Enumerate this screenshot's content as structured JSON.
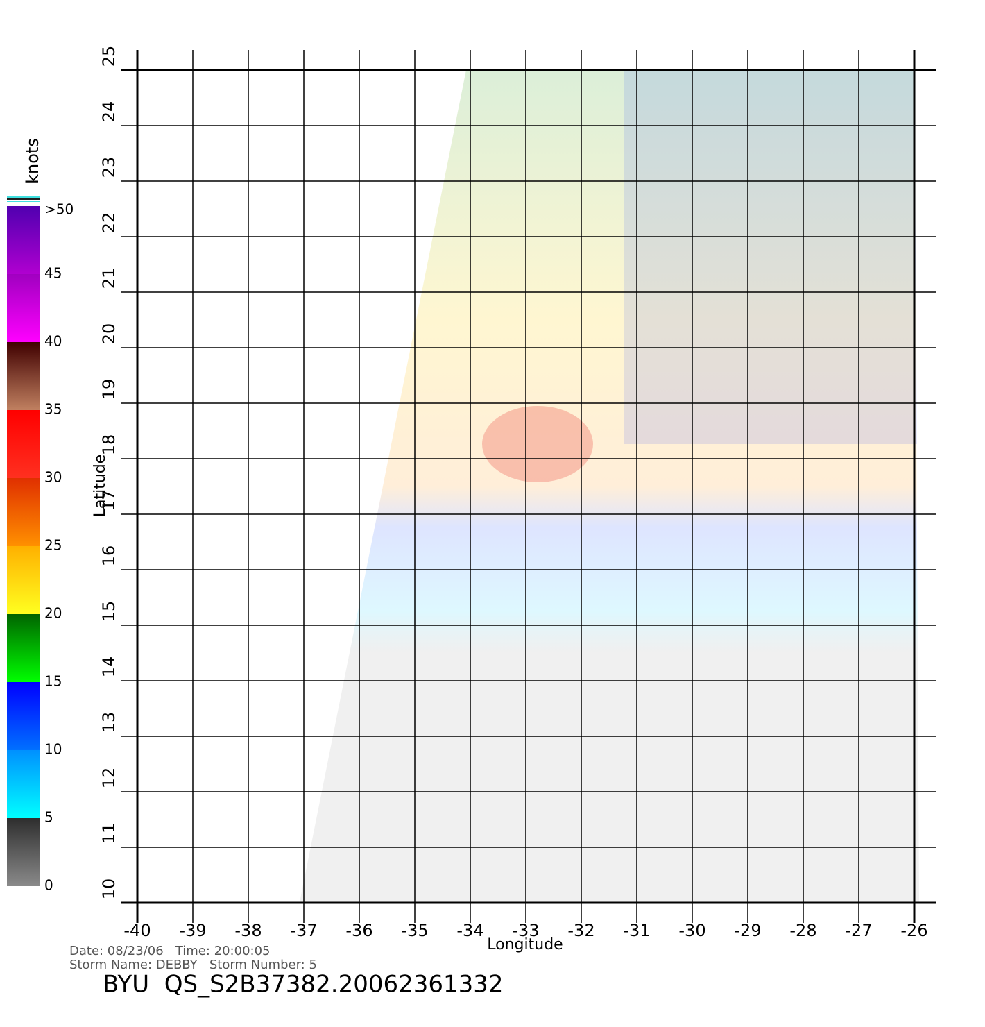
{
  "map": {
    "xlabel": "Longitude",
    "ylabel": "Latitude",
    "xlim": [
      -40,
      -26
    ],
    "ylim": [
      10,
      25
    ],
    "xticks": [
      -40,
      -39,
      -38,
      -37,
      -36,
      -35,
      -34,
      -33,
      -32,
      -31,
      -30,
      -29,
      -28,
      -27,
      -26
    ],
    "yticks": [
      10,
      11,
      12,
      13,
      14,
      15,
      16,
      17,
      18,
      19,
      20,
      21,
      22,
      23,
      24,
      25
    ],
    "grid": true
  },
  "colorbar": {
    "title": "knots",
    "lim": [
      0,
      50
    ],
    "ticks": [
      0,
      5,
      10,
      15,
      20,
      25,
      30,
      35,
      40,
      45,
      {
        "value": 50,
        "label": ">50"
      }
    ],
    "colors": [
      [
        "#8a8a8a",
        "#2e2e2e"
      ],
      [
        "#00ffff",
        "#0090ff"
      ],
      [
        "#0070ff",
        "#0000ff"
      ],
      [
        "#00ff00",
        "#006400"
      ],
      [
        "#ffff20",
        "#ffb000"
      ],
      [
        "#ff9000",
        "#e03000"
      ],
      [
        "#ff3020",
        "#ff0000"
      ],
      [
        "#c08060",
        "#400000"
      ],
      [
        "#ff00ff",
        "#a000c0"
      ],
      [
        "#b000d0",
        "#5000b0"
      ]
    ]
  },
  "info": {
    "date_line": "Date: 08/23/06   Time: 20:00:05",
    "storm_line": "Storm Name: DEBBY   Storm Number: 5",
    "file_id": "BYU  QS_S2B37382.20062361332"
  }
}
